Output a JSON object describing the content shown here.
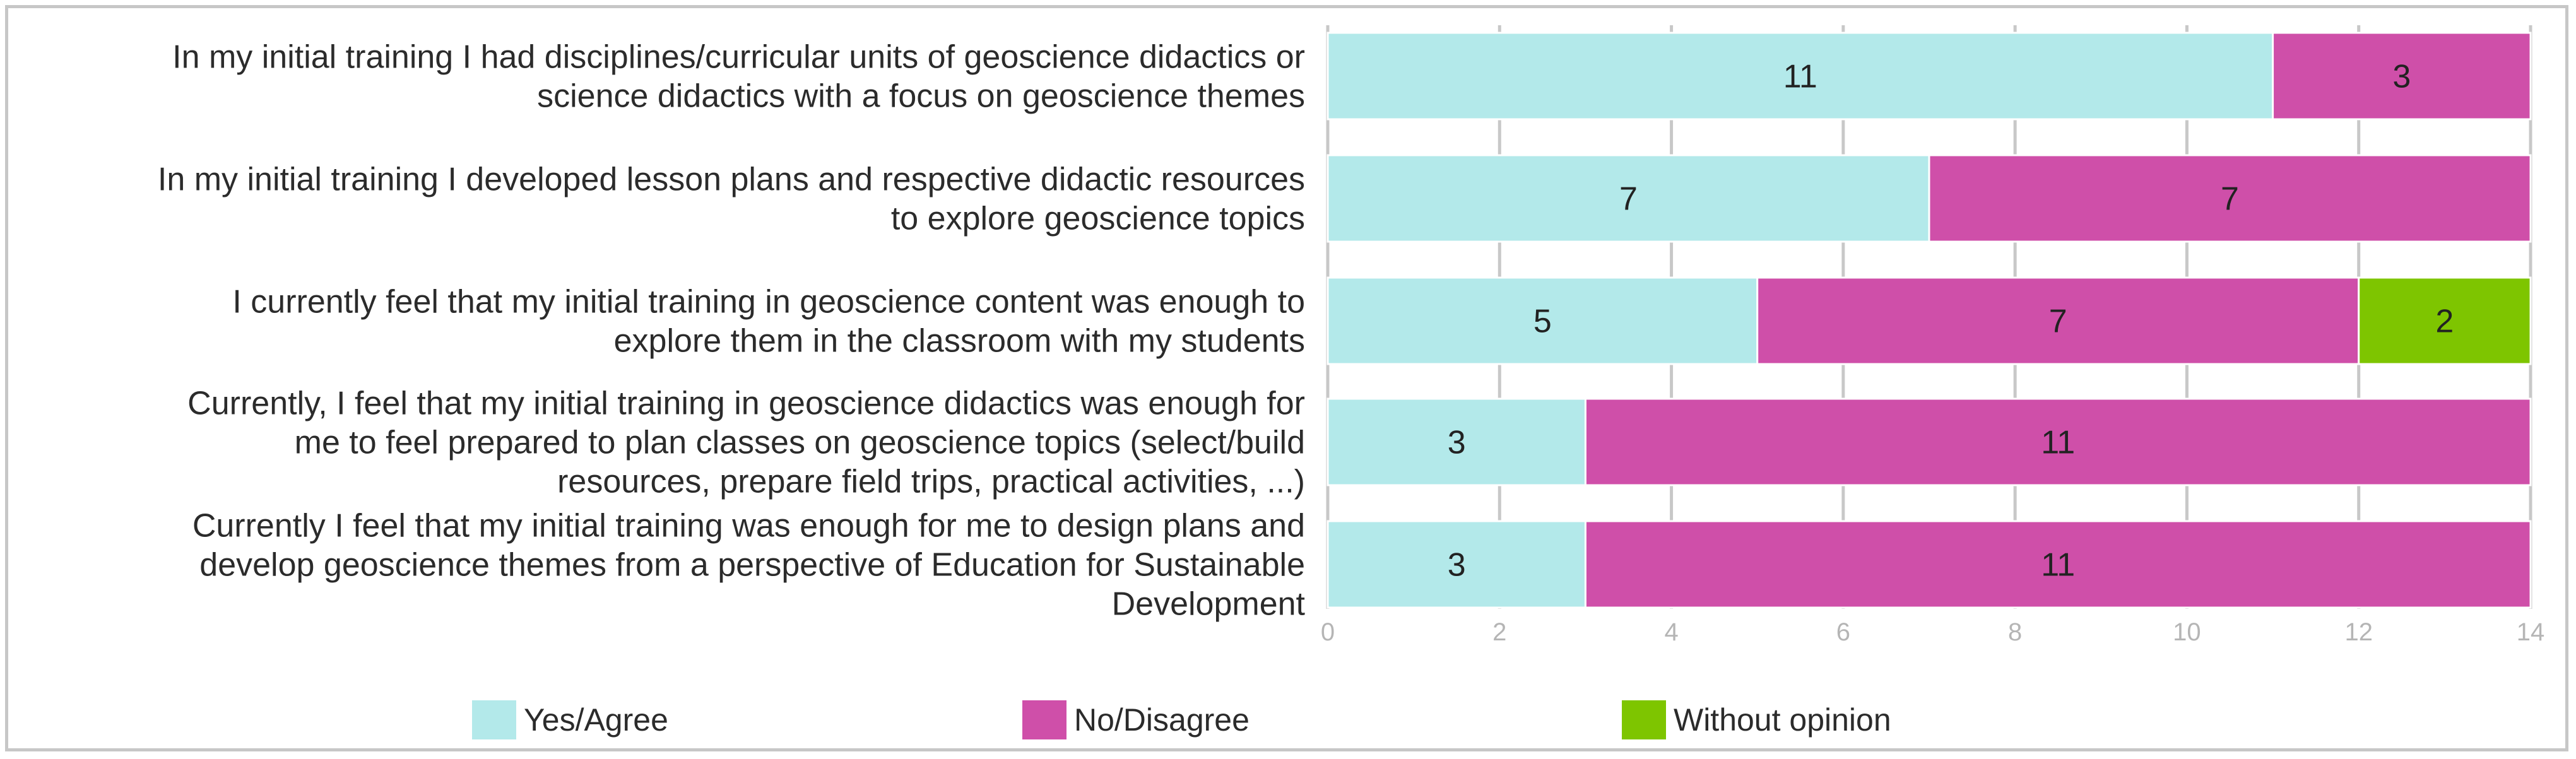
{
  "chart_data": {
    "type": "bar",
    "orientation": "horizontal",
    "stacked": true,
    "categories": [
      "In my initial training I had disciplines/curricular units of geoscience didactics or science didactics with a focus on geoscience themes",
      "In my initial training I developed lesson plans and respective didactic resources to explore geoscience topics",
      "I currently feel that my initial training in geoscience content was enough to explore them in the classroom with my students",
      "Currently, I feel that my initial training in geoscience didactics was enough for me to feel prepared to plan classes on geoscience topics (select/build resources, prepare field trips, practical activities, ...)",
      "Currently I feel that my initial training was enough for me to design plans and develop geoscience themes from a perspective of Education for Sustainable Development"
    ],
    "category_lines": [
      [
        "In my initial training I had disciplines/curricular units of geoscience didactics or",
        "science didactics with a focus on geoscience themes"
      ],
      [
        "In my initial training I developed lesson plans and respective didactic resources",
        "to explore geoscience topics"
      ],
      [
        "I currently feel that my initial training in geoscience content was enough to",
        "explore them in the classroom with my students"
      ],
      [
        "Currently, I feel that my initial training in geoscience didactics was enough for",
        "me to feel prepared to plan classes on geoscience topics (select/build",
        "resources, prepare field trips, practical activities, ...)"
      ],
      [
        "Currently I feel that my initial training was enough for me to design plans and",
        "develop geoscience themes from a perspective of Education for Sustainable",
        "Development"
      ]
    ],
    "series": [
      {
        "name": "Yes/Agree",
        "color": "#b3e9ea",
        "values": [
          11,
          7,
          5,
          3,
          3
        ]
      },
      {
        "name": "No/Disagree",
        "color": "#cf4fa9",
        "values": [
          3,
          7,
          7,
          11,
          11
        ]
      },
      {
        "name": "Without opinion",
        "color": "#7ec500",
        "values": [
          0,
          0,
          2,
          0,
          0
        ]
      }
    ],
    "xlim": [
      0,
      14
    ],
    "xticks": [
      "0",
      "2",
      "4",
      "6",
      "8",
      "10",
      "12",
      "14"
    ],
    "grid": true,
    "legend": "bottom",
    "gridline_color": "#c8c8c8"
  }
}
